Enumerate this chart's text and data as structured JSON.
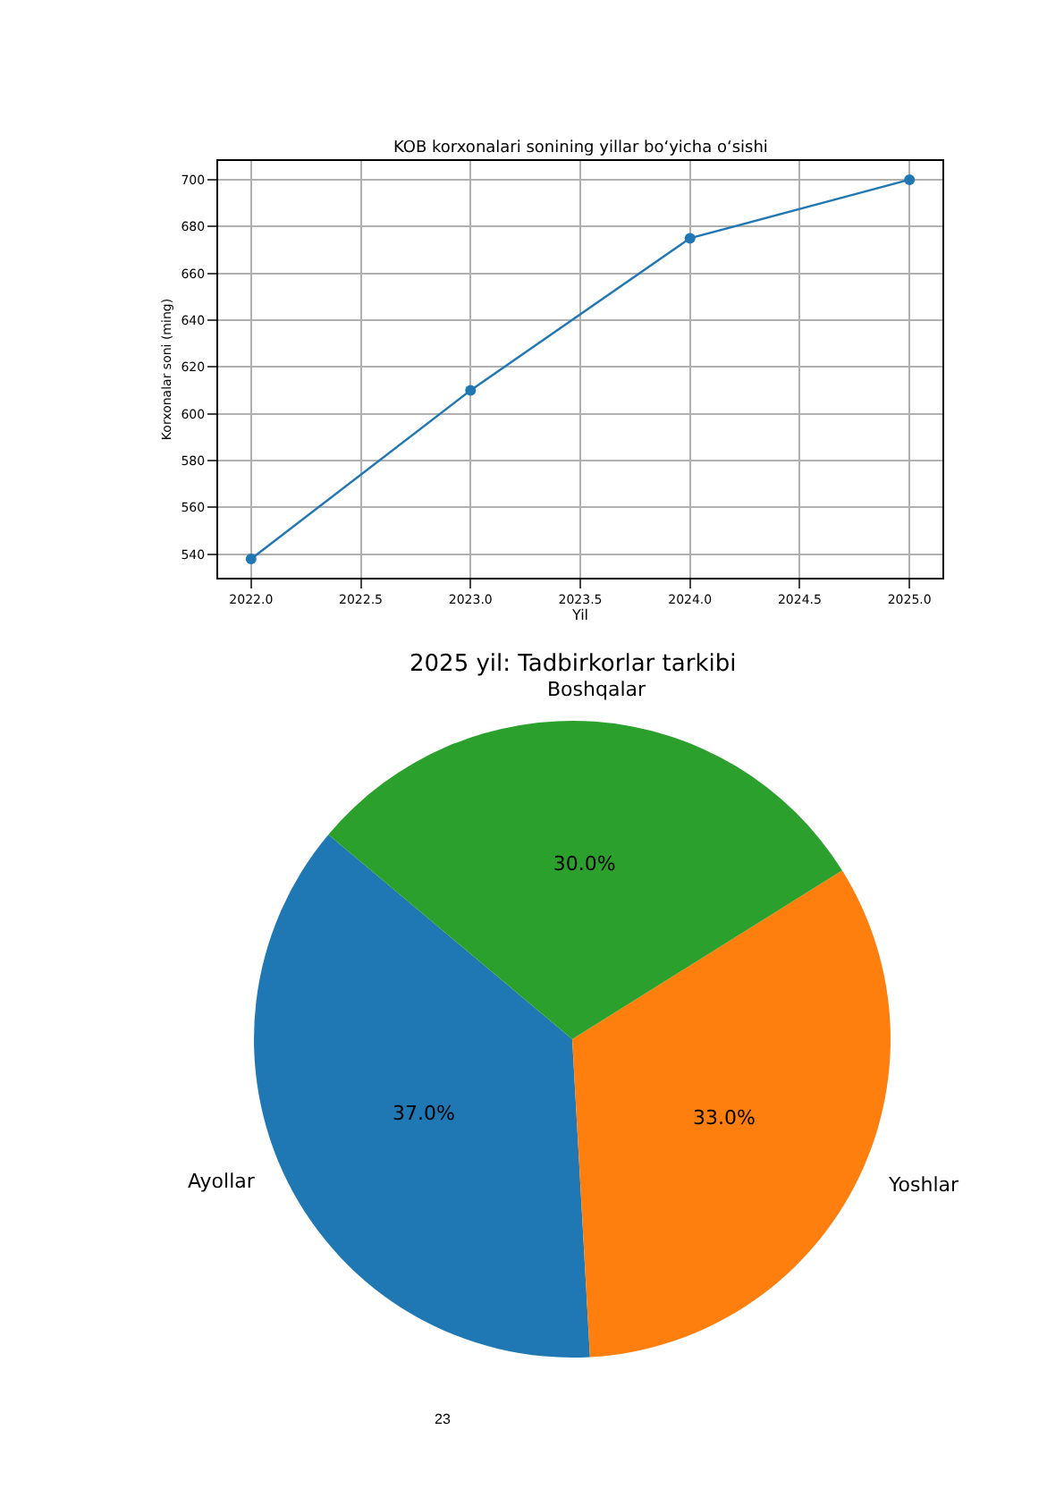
{
  "chart_data": [
    {
      "type": "line",
      "title": "KOB korxonalari sonining yillar bo‘yicha o‘sishi",
      "xlabel": "Yil",
      "ylabel": "Korxonalar soni (ming)",
      "x": [
        2022,
        2023,
        2024,
        2025
      ],
      "series": [
        {
          "color": "#1f77b4",
          "values": [
            538,
            610,
            675,
            700
          ]
        }
      ],
      "xlim": [
        2021.85,
        2025.15
      ],
      "xticks": [
        {
          "value": 2022,
          "label": "2022.0"
        },
        {
          "value": 2022.5,
          "label": "2022.5"
        },
        {
          "value": 2023,
          "label": "2023.0"
        },
        {
          "value": 2023.5,
          "label": "2023.5"
        },
        {
          "value": 2024,
          "label": "2024.0"
        },
        {
          "value": 2024.5,
          "label": "2024.5"
        },
        {
          "value": 2025,
          "label": "2025.0"
        }
      ],
      "ylim": [
        530,
        708
      ],
      "yticks": [
        540,
        560,
        580,
        600,
        620,
        640,
        660,
        680,
        700
      ],
      "grid": true,
      "marker": "circle",
      "line_style": "solid"
    },
    {
      "type": "pie",
      "title": "2025 yil: Tadbirkorlar tarkibi",
      "categories": [
        "Ayollar",
        "Yoshlar",
        "Boshqalar"
      ],
      "values": [
        37,
        33,
        30
      ],
      "colors": [
        "#1f77b4",
        "#ff7f0e",
        "#2ca02c"
      ],
      "value_labels": [
        "37.0%",
        "33.0%",
        "30.0%"
      ],
      "annotations": [
        "23"
      ]
    }
  ]
}
